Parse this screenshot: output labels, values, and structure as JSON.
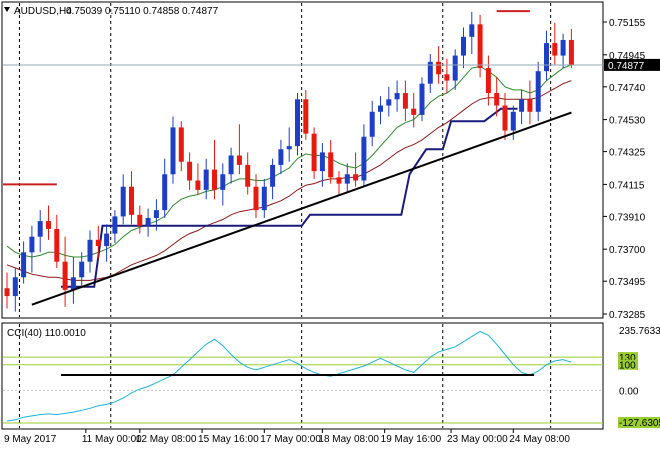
{
  "header": {
    "symbol_tf": "AUDUSD,H4",
    "ohlc": "0.75039 0.75110 0.74858 0.74877"
  },
  "cci_header": "CCI(40) 110.0010",
  "last_price_tag": "0.74877",
  "chart_data": [
    {
      "type": "candlestick",
      "ylim": [
        0.73285,
        0.75225
      ],
      "price_axis_ticks": [
        "0.75155",
        "0.74945",
        "0.74740",
        "0.74530",
        "0.74325",
        "0.74115",
        "0.73910",
        "0.73700",
        "0.73495",
        "0.73285"
      ],
      "time_axis_labels": [
        "9 May 2017",
        "11 May 00:00",
        "12 May 08:00",
        "15 May 16:00",
        "17 May 00:00",
        "18 May 08:00",
        "19 May 16:00",
        "23 May 00:00",
        "24 May 08:00"
      ],
      "day_separators": [
        1.5,
        12.5,
        35.5,
        52.5,
        65.5
      ],
      "colors": {
        "up": "#1e3fc4",
        "down": "#e8190f",
        "ma_fast": "#2e8b2e",
        "ma_slow": "#8b1a1a",
        "level": "#1a1a7a",
        "trendline": "#000000",
        "resistance": "#cc2020"
      },
      "ohlc": [
        [
          0.7345,
          0.7355,
          0.7332,
          0.734
        ],
        [
          0.734,
          0.7358,
          0.733,
          0.7352
        ],
        [
          0.7352,
          0.7375,
          0.7348,
          0.7368
        ],
        [
          0.7368,
          0.7385,
          0.7355,
          0.7378
        ],
        [
          0.7378,
          0.7395,
          0.7368,
          0.7388
        ],
        [
          0.7388,
          0.7398,
          0.7376,
          0.7383
        ],
        [
          0.7383,
          0.7392,
          0.7358,
          0.7362
        ],
        [
          0.7362,
          0.7378,
          0.7333,
          0.7344
        ],
        [
          0.7344,
          0.7365,
          0.7335,
          0.7352
        ],
        [
          0.7352,
          0.7368,
          0.7345,
          0.7362
        ],
        [
          0.7362,
          0.7382,
          0.7355,
          0.7376
        ],
        [
          0.7376,
          0.7385,
          0.7364,
          0.7372
        ],
        [
          0.7372,
          0.7386,
          0.7362,
          0.738
        ],
        [
          0.738,
          0.7395,
          0.7374,
          0.7391
        ],
        [
          0.7391,
          0.7418,
          0.7386,
          0.741
        ],
        [
          0.741,
          0.742,
          0.7386,
          0.7392
        ],
        [
          0.7392,
          0.7398,
          0.738,
          0.7385
        ],
        [
          0.7385,
          0.7396,
          0.7378,
          0.739
        ],
        [
          0.739,
          0.7402,
          0.7382,
          0.7395
        ],
        [
          0.7395,
          0.7428,
          0.739,
          0.7418
        ],
        [
          0.7418,
          0.7455,
          0.7412,
          0.7448
        ],
        [
          0.7448,
          0.7452,
          0.742,
          0.7426
        ],
        [
          0.7426,
          0.7432,
          0.7408,
          0.7414
        ],
        [
          0.7414,
          0.7425,
          0.7405,
          0.7408
        ],
        [
          0.7408,
          0.7428,
          0.7402,
          0.7421
        ],
        [
          0.7421,
          0.744,
          0.7402,
          0.7408
        ],
        [
          0.7408,
          0.7425,
          0.7398,
          0.7418
        ],
        [
          0.7418,
          0.7435,
          0.7412,
          0.743
        ],
        [
          0.743,
          0.745,
          0.7418,
          0.7424
        ],
        [
          0.7424,
          0.7432,
          0.7405,
          0.741
        ],
        [
          0.741,
          0.7418,
          0.739,
          0.7395
        ],
        [
          0.7395,
          0.7415,
          0.739,
          0.741
        ],
        [
          0.741,
          0.7428,
          0.7402,
          0.7424
        ],
        [
          0.7424,
          0.744,
          0.7418,
          0.7434
        ],
        [
          0.7434,
          0.7448,
          0.7426,
          0.7436
        ],
        [
          0.7436,
          0.747,
          0.743,
          0.7466
        ],
        [
          0.7466,
          0.7472,
          0.744,
          0.7444
        ],
        [
          0.7444,
          0.7448,
          0.7415,
          0.742
        ],
        [
          0.742,
          0.7438,
          0.741,
          0.7432
        ],
        [
          0.7432,
          0.744,
          0.7412,
          0.7416
        ],
        [
          0.7416,
          0.742,
          0.7405,
          0.7412
        ],
        [
          0.7412,
          0.7425,
          0.7406,
          0.7418
        ],
        [
          0.7418,
          0.7432,
          0.741,
          0.7414
        ],
        [
          0.7414,
          0.745,
          0.741,
          0.7442
        ],
        [
          0.7442,
          0.7465,
          0.7436,
          0.7458
        ],
        [
          0.7458,
          0.7468,
          0.745,
          0.7462
        ],
        [
          0.7462,
          0.7474,
          0.7455,
          0.7466
        ],
        [
          0.7466,
          0.7478,
          0.7458,
          0.747
        ],
        [
          0.747,
          0.7478,
          0.7452,
          0.746
        ],
        [
          0.746,
          0.747,
          0.7448,
          0.7456
        ],
        [
          0.7456,
          0.748,
          0.7452,
          0.7476
        ],
        [
          0.7476,
          0.7495,
          0.747,
          0.749
        ],
        [
          0.749,
          0.75,
          0.7476,
          0.7482
        ],
        [
          0.7482,
          0.7492,
          0.747,
          0.7478
        ],
        [
          0.7478,
          0.7498,
          0.7472,
          0.7494
        ],
        [
          0.7494,
          0.7512,
          0.7486,
          0.7506
        ],
        [
          0.7506,
          0.7522,
          0.7495,
          0.7514
        ],
        [
          0.7514,
          0.752,
          0.748,
          0.7486
        ],
        [
          0.7486,
          0.7494,
          0.7462,
          0.747
        ],
        [
          0.747,
          0.748,
          0.7455,
          0.7462
        ],
        [
          0.7462,
          0.747,
          0.744,
          0.7446
        ],
        [
          0.7446,
          0.7462,
          0.744,
          0.7458
        ],
        [
          0.7458,
          0.7472,
          0.745,
          0.7466
        ],
        [
          0.7466,
          0.7478,
          0.745,
          0.7458
        ],
        [
          0.7458,
          0.749,
          0.7452,
          0.7484
        ],
        [
          0.7484,
          0.751,
          0.7478,
          0.7502
        ],
        [
          0.7502,
          0.7515,
          0.7488,
          0.7494
        ],
        [
          0.7494,
          0.7508,
          0.7486,
          0.7504
        ],
        [
          0.7504,
          0.7511,
          0.7486,
          0.7488
        ]
      ],
      "ma_fast": [
        0.7372,
        0.7368,
        0.7366,
        0.7365,
        0.7366,
        0.7368,
        0.7368,
        0.7366,
        0.7365,
        0.7365,
        0.7366,
        0.7368,
        0.737,
        0.7373,
        0.7378,
        0.7382,
        0.7384,
        0.7386,
        0.7388,
        0.7391,
        0.7398,
        0.7402,
        0.7404,
        0.7405,
        0.7407,
        0.7408,
        0.741,
        0.7413,
        0.7415,
        0.7415,
        0.7414,
        0.7414,
        0.7416,
        0.7419,
        0.7422,
        0.7428,
        0.7431,
        0.743,
        0.743,
        0.7428,
        0.7425,
        0.7423,
        0.7422,
        0.7425,
        0.743,
        0.7436,
        0.7442,
        0.7448,
        0.7451,
        0.7453,
        0.7458,
        0.7464,
        0.7468,
        0.747,
        0.7474,
        0.748,
        0.7486,
        0.7487,
        0.7484,
        0.748,
        0.7474,
        0.7472,
        0.7472,
        0.747,
        0.7472,
        0.7478,
        0.7482,
        0.7486,
        0.7488
      ],
      "ma_slow": [
        0.736,
        0.7358,
        0.7356,
        0.7354,
        0.7353,
        0.7352,
        0.7352,
        0.7351,
        0.735,
        0.735,
        0.735,
        0.7351,
        0.7352,
        0.7354,
        0.7357,
        0.736,
        0.7362,
        0.7364,
        0.7366,
        0.7369,
        0.7373,
        0.7377,
        0.738,
        0.7382,
        0.7385,
        0.7387,
        0.7389,
        0.7392,
        0.7394,
        0.7395,
        0.7396,
        0.7397,
        0.7399,
        0.7401,
        0.7404,
        0.7408,
        0.7411,
        0.7412,
        0.7414,
        0.7415,
        0.7415,
        0.7416,
        0.7416,
        0.7418,
        0.7421,
        0.7424,
        0.7428,
        0.7432,
        0.7435,
        0.7437,
        0.744,
        0.7444,
        0.7448,
        0.7451,
        0.7455,
        0.7459,
        0.7463,
        0.7466,
        0.7467,
        0.7467,
        0.7466,
        0.7466,
        0.7466,
        0.7466,
        0.7467,
        0.747,
        0.7473,
        0.7476,
        0.7478
      ],
      "level_line": [
        [
          6.5,
          0.7346
        ],
        [
          10.5,
          0.7346
        ],
        [
          11.5,
          0.7385
        ],
        [
          13.5,
          0.7385
        ],
        [
          35.5,
          0.7385
        ],
        [
          36.5,
          0.7392
        ],
        [
          47.5,
          0.7392
        ],
        [
          48.5,
          0.7418
        ],
        [
          50.5,
          0.7434
        ],
        [
          52.5,
          0.7434
        ],
        [
          53.5,
          0.7452
        ],
        [
          57.5,
          0.7452
        ],
        [
          59.5,
          0.746
        ],
        [
          61.5,
          0.746
        ]
      ],
      "trendline": [
        [
          3,
          0.73345
        ],
        [
          68,
          0.74575
        ]
      ],
      "resistance_lines": [
        {
          "x": [
            -1,
            6
          ],
          "y": 0.74115
        },
        {
          "x": [
            59,
            63
          ],
          "y": 0.75225
        }
      ]
    },
    {
      "type": "line",
      "indicator": "CCI(40)",
      "ylim": [
        -127.6305,
        235.7633
      ],
      "axis_labels": [
        "235.7633",
        "130",
        "100",
        "0.00",
        "-127.6305"
      ],
      "levels": [
        130,
        100,
        0,
        -127.6305
      ],
      "support_segment": {
        "x": [
          6.5,
          63.5
        ],
        "y": 60
      },
      "values": [
        -120,
        -115,
        -105,
        -100,
        -95,
        -92,
        -95,
        -90,
        -85,
        -78,
        -70,
        -60,
        -55,
        -45,
        -30,
        -10,
        5,
        15,
        30,
        45,
        60,
        90,
        120,
        150,
        180,
        200,
        175,
        140,
        110,
        90,
        80,
        90,
        100,
        110,
        120,
        105,
        85,
        70,
        60,
        55,
        65,
        75,
        85,
        95,
        110,
        125,
        110,
        95,
        80,
        70,
        100,
        130,
        150,
        160,
        170,
        190,
        210,
        230,
        215,
        180,
        140,
        100,
        70,
        60,
        75,
        100,
        115,
        120,
        110
      ]
    }
  ]
}
